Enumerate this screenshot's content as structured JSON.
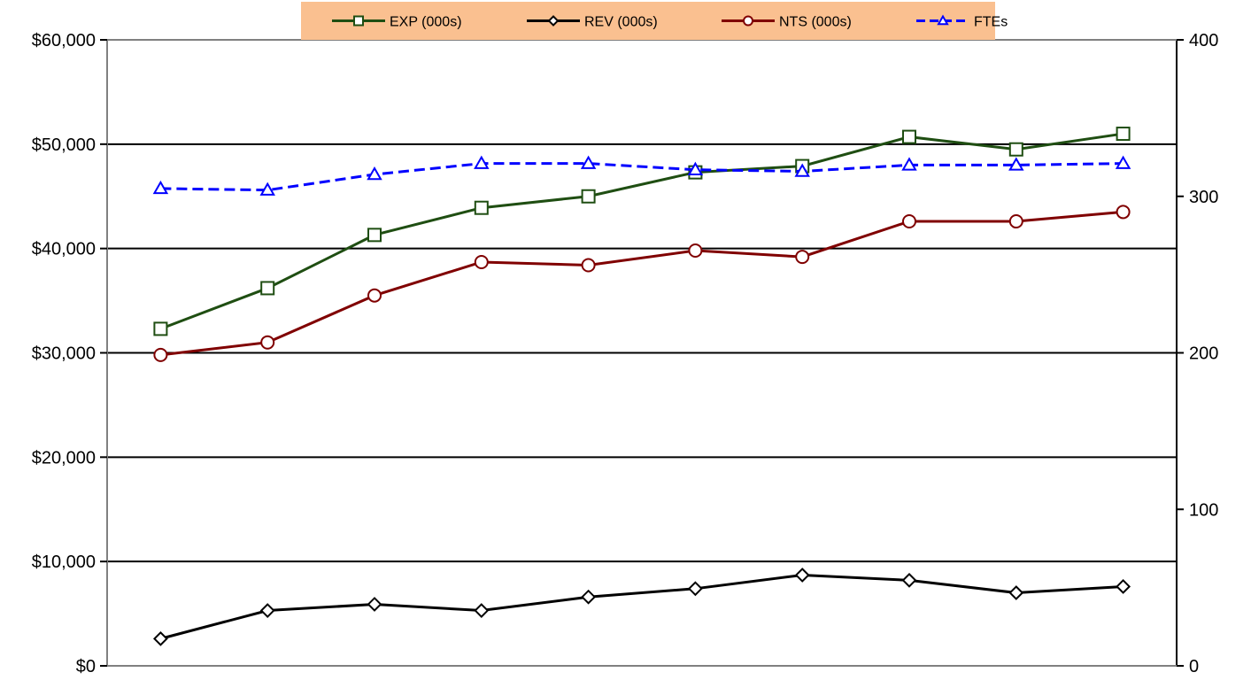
{
  "chart_data": {
    "type": "line",
    "title": "",
    "xlabel": "",
    "ylabel": "",
    "x": [
      1,
      2,
      3,
      4,
      5,
      6,
      7,
      8,
      9,
      10
    ],
    "grid": true,
    "legend_position": "top-center",
    "legend_background": "#FAC090",
    "axes": {
      "y_left": {
        "min": 0,
        "max": 60000,
        "ticks": [
          0,
          10000,
          20000,
          30000,
          40000,
          50000,
          60000
        ],
        "tick_labels": [
          "$0",
          "$10,000",
          "$20,000",
          "$30,000",
          "$40,000",
          "$50,000",
          "$60,000"
        ]
      },
      "y_right": {
        "min": 0,
        "max": 400,
        "ticks": [
          0,
          100,
          200,
          300,
          400
        ],
        "tick_labels": [
          "0",
          "100",
          "200",
          "300",
          "400"
        ]
      }
    },
    "series": [
      {
        "name": "EXP (000s)",
        "axis": "left",
        "color": "#1F4E12",
        "marker": "square",
        "dash": "solid",
        "values": [
          32300,
          36200,
          41300,
          43900,
          45000,
          47300,
          47900,
          50700,
          49500,
          51000
        ]
      },
      {
        "name": "REV (000s)",
        "axis": "left",
        "color": "#000000",
        "marker": "diamond",
        "dash": "solid",
        "values": [
          2600,
          5300,
          5900,
          5300,
          6600,
          7400,
          8700,
          8200,
          7000,
          7600
        ]
      },
      {
        "name": "NTS (000s)",
        "axis": "left",
        "color": "#800000",
        "marker": "circle",
        "dash": "solid",
        "values": [
          29800,
          31000,
          35500,
          38700,
          38400,
          39800,
          39200,
          42600,
          42600,
          43500
        ]
      },
      {
        "name": "FTEs",
        "axis": "right",
        "color": "#0000FF",
        "marker": "triangle",
        "dash": "dashed",
        "values": [
          305,
          304,
          314,
          321,
          321,
          317,
          316,
          320,
          320,
          321
        ]
      }
    ]
  }
}
